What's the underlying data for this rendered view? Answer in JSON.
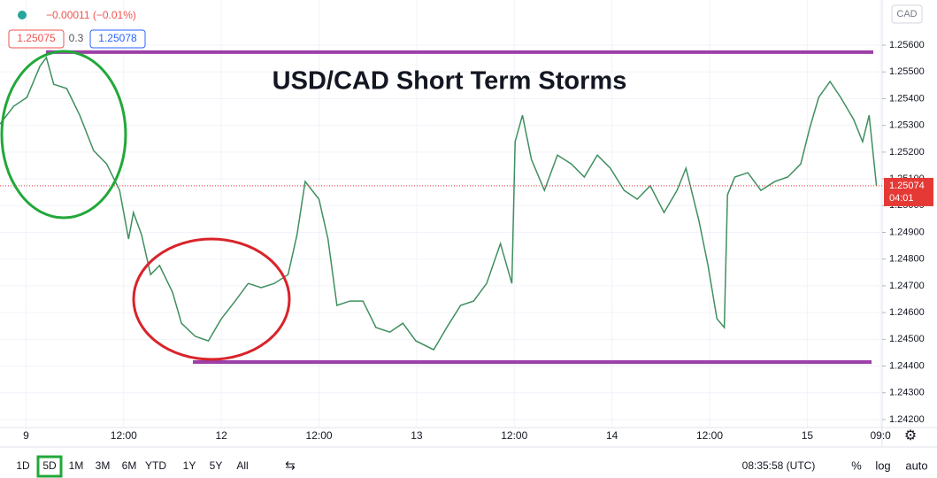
{
  "header": {
    "change": "−0.00011 (−0.01%)",
    "bid": "1.25075",
    "spread": "0.3",
    "ask": "1.25078"
  },
  "chart_data": {
    "type": "line",
    "title": "USD/CAD Short Term Storms",
    "currency": "CAD",
    "color": "#3f8f5f",
    "grid": true,
    "x": [
      -3.2,
      -1.5,
      0.1,
      1.7,
      2.5,
      3.4,
      5.0,
      6.6,
      8.3,
      9.9,
      11.5,
      12.6,
      13.2,
      14.2,
      15.3,
      16.4,
      18.0,
      19.1,
      20.8,
      22.4,
      24.0,
      25.7,
      27.3,
      28.9,
      30.5,
      32.2,
      33.3,
      34.3,
      36.0,
      37.1,
      38.2,
      39.8,
      41.4,
      43.0,
      44.7,
      46.3,
      47.9,
      50.1,
      51.7,
      53.4,
      55.0,
      56.6,
      58.3,
      59.7,
      60.1,
      61.0,
      62.1,
      63.7,
      65.3,
      67.0,
      68.6,
      70.2,
      71.8,
      73.5,
      75.1,
      76.7,
      78.4,
      80.0,
      81.1,
      82.7,
      83.8,
      84.9,
      85.8,
      86.2,
      87.1,
      88.7,
      90.3,
      92.0,
      93.6,
      95.2,
      96.3,
      97.4,
      98.8,
      100.1,
      101.7,
      102.8,
      103.6,
      104.5
    ],
    "values": [
      1.25305,
      1.25372,
      1.25405,
      1.25521,
      1.25554,
      1.25454,
      1.25438,
      1.25338,
      1.25206,
      1.25156,
      1.25057,
      1.24875,
      1.24974,
      1.24891,
      1.24742,
      1.24776,
      1.24676,
      1.2456,
      1.24511,
      1.24494,
      1.24577,
      1.24643,
      1.24709,
      1.24693,
      1.24709,
      1.24742,
      1.24891,
      1.2509,
      1.25024,
      1.24875,
      1.24627,
      1.24643,
      1.24643,
      1.24544,
      1.24527,
      1.2456,
      1.24494,
      1.24461,
      1.24544,
      1.24627,
      1.24643,
      1.24709,
      1.24858,
      1.24709,
      1.25239,
      1.25338,
      1.25173,
      1.25057,
      1.25189,
      1.25156,
      1.25107,
      1.25189,
      1.2514,
      1.25057,
      1.25024,
      1.25074,
      1.24974,
      1.25057,
      1.2514,
      1.24941,
      1.24776,
      1.24577,
      1.24544,
      1.2504,
      1.25107,
      1.25123,
      1.25057,
      1.2509,
      1.25107,
      1.25156,
      1.25289,
      1.25405,
      1.25464,
      1.25405,
      1.25322,
      1.25239,
      1.25338,
      1.25074
    ],
    "xlim": [
      -3.2,
      105.2
    ],
    "xticks": [
      {
        "value": 0,
        "label": "9"
      },
      {
        "value": 12,
        "label": "12:00"
      },
      {
        "value": 24,
        "label": "12"
      },
      {
        "value": 36,
        "label": "12:00"
      },
      {
        "value": 48,
        "label": "13"
      },
      {
        "value": 60,
        "label": "12:00"
      },
      {
        "value": 72,
        "label": "14"
      },
      {
        "value": 84,
        "label": "12:00"
      },
      {
        "value": 96,
        "label": "15"
      },
      {
        "value": 105,
        "label": "09:0"
      }
    ],
    "ylim": [
      1.2417,
      1.25769
    ],
    "yticks": [
      {
        "value": 1.242,
        "label": "1.24200"
      },
      {
        "value": 1.243,
        "label": "1.24300"
      },
      {
        "value": 1.244,
        "label": "1.24400"
      },
      {
        "value": 1.245,
        "label": "1.24500"
      },
      {
        "value": 1.246,
        "label": "1.24600"
      },
      {
        "value": 1.247,
        "label": "1.24700"
      },
      {
        "value": 1.248,
        "label": "1.24800"
      },
      {
        "value": 1.249,
        "label": "1.24900"
      },
      {
        "value": 1.25,
        "label": "1.25000"
      },
      {
        "value": 1.251,
        "label": "1.25100"
      },
      {
        "value": 1.252,
        "label": "1.25200"
      },
      {
        "value": 1.253,
        "label": "1.25300"
      },
      {
        "value": 1.254,
        "label": "1.25400"
      },
      {
        "value": 1.255,
        "label": "1.25500"
      },
      {
        "value": 1.256,
        "label": "1.25600"
      }
    ],
    "resistance": 1.25574,
    "support": 1.24415,
    "level_color": "#9c3fa8",
    "last_price": 1.25074,
    "countdown": "04:01",
    "last_color": "#e53935"
  },
  "toolbar": {
    "ranges": [
      "1D",
      "5D",
      "1M",
      "3M",
      "6M",
      "YTD",
      "1Y",
      "5Y",
      "All"
    ],
    "active": 1,
    "time": "08:35:58 (UTC)",
    "options": [
      "%",
      "log",
      "auto"
    ]
  }
}
